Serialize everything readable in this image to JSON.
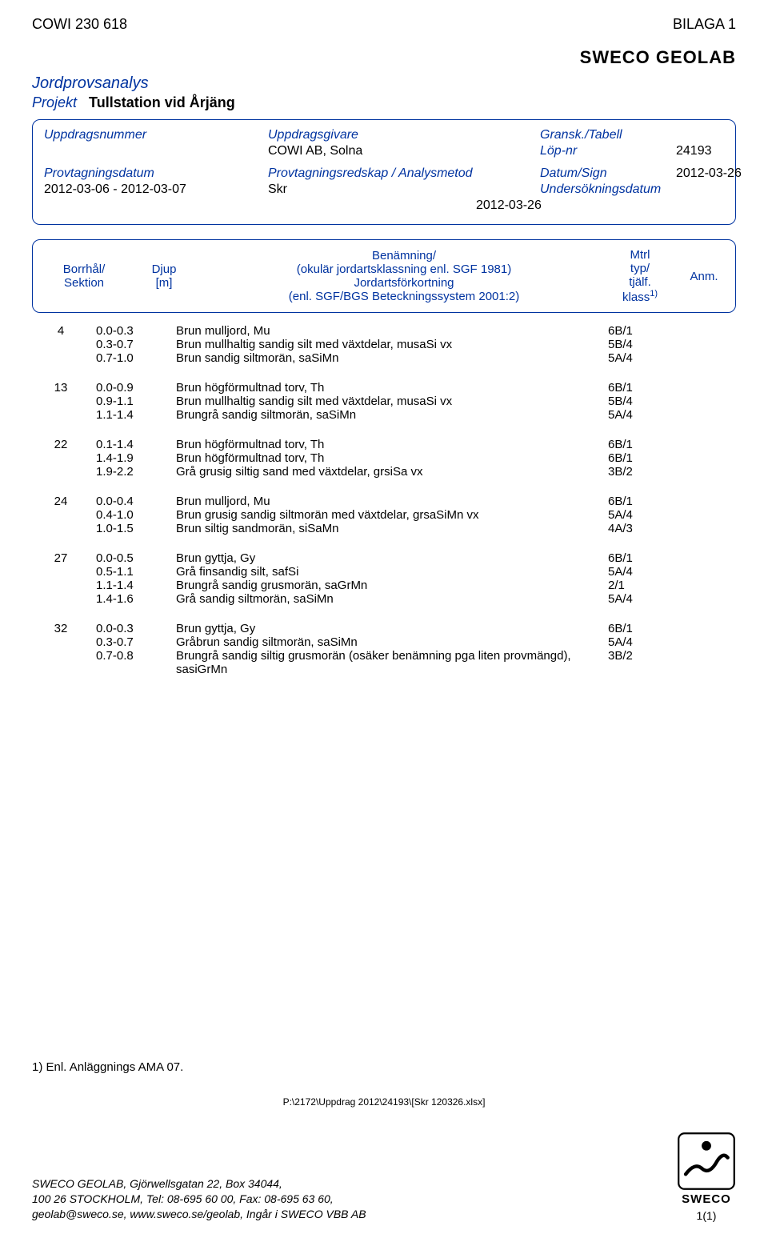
{
  "colors": {
    "brand_blue": "#0033a0",
    "black": "#000000",
    "white": "#ffffff"
  },
  "top": {
    "left": "COWI 230 618",
    "right": "BILAGA 1"
  },
  "brand": "SWECO GEOLAB",
  "section_title": "Jordprovsanalys",
  "projekt": {
    "label": "Projekt",
    "value": "Tullstation vid Årjäng"
  },
  "header_box": {
    "uppdragsnummer": {
      "label": "Uppdragsnummer",
      "value": ""
    },
    "uppdragsgivare": {
      "label": "Uppdragsgivare",
      "value": "COWI AB, Solna"
    },
    "gransk_tabell": {
      "label": "Gransk./Tabell"
    },
    "lop_nr": {
      "label": "Löp-nr",
      "value": "24193"
    },
    "provtagningsdatum": {
      "label": "Provtagningsdatum",
      "value": "2012-03-06  -  2012-03-07"
    },
    "provtagningsredskap": {
      "label": "Provtagningsredskap / Analysmetod",
      "value": "Skr"
    },
    "datum_sign": {
      "label": "Datum/Sign",
      "value": "2012-03-26"
    },
    "undersokningsdatum": {
      "label": "Undersökningsdatum",
      "value": "2012-03-26"
    }
  },
  "column_headers": {
    "borrhal": "Borrhål/",
    "sektion": "Sektion",
    "djup": "Djup",
    "djup_unit": "[m]",
    "benamning1": "Benämning/",
    "benamning2": "(okulär jordartsklassning enl. SGF 1981)",
    "benamning3": "Jordartsförkortning",
    "benamning4": "(enl. SGF/BGS Beteckningssystem 2001:2)",
    "mtrl": "Mtrl",
    "typ": "typ/",
    "tjalf": "tjälf.",
    "klass": "klass",
    "klass_sup": "1)",
    "anm": "Anm."
  },
  "groups": [
    {
      "bh": "4",
      "rows": [
        {
          "depth": "0.0-0.3",
          "desc": "Brun mulljord, Mu",
          "code": "6B/1"
        },
        {
          "depth": "0.3-0.7",
          "desc": "Brun mullhaltig sandig silt med växtdelar, musaSi vx",
          "code": "5B/4"
        },
        {
          "depth": "0.7-1.0",
          "desc": "Brun sandig siltmorän, saSiMn",
          "code": "5A/4"
        }
      ]
    },
    {
      "bh": "13",
      "rows": [
        {
          "depth": "0.0-0.9",
          "desc": "Brun högförmultnad torv, Th",
          "code": "6B/1"
        },
        {
          "depth": "0.9-1.1",
          "desc": "Brun mullhaltig sandig silt med växtdelar, musaSi vx",
          "code": "5B/4"
        },
        {
          "depth": "1.1-1.4",
          "desc": "Brungrå sandig siltmorän, saSiMn",
          "code": "5A/4"
        }
      ]
    },
    {
      "bh": "22",
      "rows": [
        {
          "depth": "0.1-1.4",
          "desc": "Brun högförmultnad torv, Th",
          "code": "6B/1"
        },
        {
          "depth": "1.4-1.9",
          "desc": "Brun högförmultnad torv, Th",
          "code": "6B/1"
        },
        {
          "depth": "1.9-2.2",
          "desc": "Grå grusig siltig sand med växtdelar, grsiSa vx",
          "code": "3B/2"
        }
      ]
    },
    {
      "bh": "24",
      "rows": [
        {
          "depth": "0.0-0.4",
          "desc": "Brun mulljord, Mu",
          "code": "6B/1"
        },
        {
          "depth": "0.4-1.0",
          "desc": "Brun grusig sandig siltmorän med växtdelar, grsaSiMn vx",
          "code": "5A/4"
        },
        {
          "depth": "1.0-1.5",
          "desc": "Brun siltig sandmorän, siSaMn",
          "code": "4A/3"
        }
      ]
    },
    {
      "bh": "27",
      "rows": [
        {
          "depth": "0.0-0.5",
          "desc": "Brun gyttja, Gy",
          "code": "6B/1"
        },
        {
          "depth": "0.5-1.1",
          "desc": "Grå finsandig silt, safSi",
          "code": "5A/4"
        },
        {
          "depth": "1.1-1.4",
          "desc": "Brungrå sandig grusmorän, saGrMn",
          "code": "2/1"
        },
        {
          "depth": "1.4-1.6",
          "desc": "Grå sandig siltmorän, saSiMn",
          "code": "5A/4"
        }
      ]
    },
    {
      "bh": "32",
      "rows": [
        {
          "depth": "0.0-0.3",
          "desc": "Brun gyttja, Gy",
          "code": "6B/1"
        },
        {
          "depth": "0.3-0.7",
          "desc": "Gråbrun sandig siltmorän, saSiMn",
          "code": "5A/4"
        },
        {
          "depth": "0.7-0.8",
          "desc": "Brungrå sandig siltig grusmorän (osäker benämning pga liten provmängd), sasiGrMn",
          "code": "3B/2"
        }
      ]
    }
  ],
  "footnote": "1) Enl. Anläggnings AMA 07.",
  "filepath": "P:\\2172\\Uppdrag 2012\\24193\\[Skr 120326.xlsx]",
  "footer": {
    "line1": "SWECO GEOLAB, Gjörwellsgatan 22, Box 34044,",
    "line2": "100 26 STOCKHOLM, Tel: 08-695 60 00, Fax: 08-695 63 60,",
    "line3": "geolab@sweco.se, www.sweco.se/geolab, Ingår i SWECO VBB AB",
    "logo_text": "SWECO",
    "pagenum": "1(1)"
  }
}
